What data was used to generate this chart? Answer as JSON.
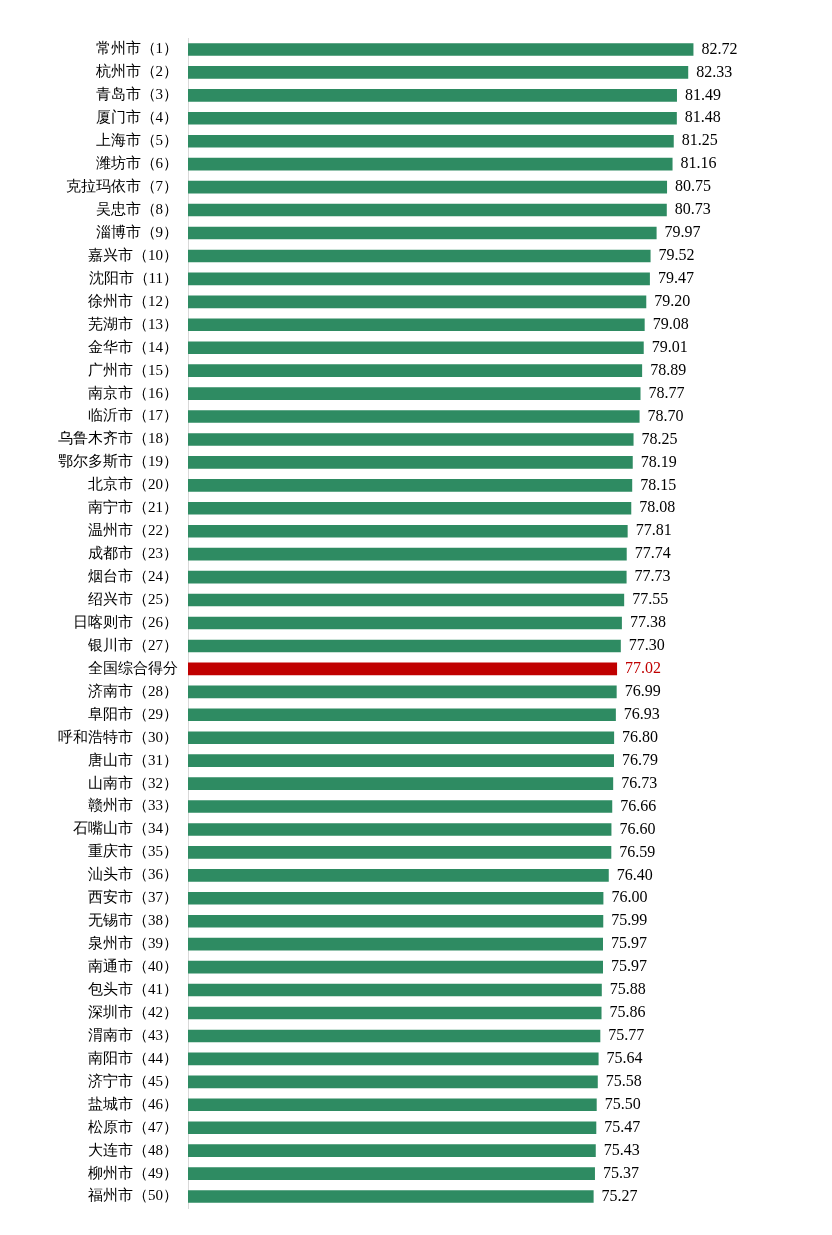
{
  "chart_data": {
    "type": "bar",
    "orientation": "horizontal",
    "grid": false,
    "legend": false,
    "tick_labels": "y",
    "value_labels": [
      "82.72",
      "82.33",
      "81.49",
      "81.48",
      "81.25",
      "81.16",
      "80.75",
      "80.73",
      "79.97",
      "79.52",
      "79.47",
      "79.20",
      "79.08",
      "79.01",
      "78.89",
      "78.77",
      "78.70",
      "78.25",
      "78.19",
      "78.15",
      "78.08",
      "77.81",
      "77.74",
      "77.73",
      "77.55",
      "77.38",
      "77.30",
      "77.02",
      "76.99",
      "76.93",
      "76.80",
      "76.79",
      "76.73",
      "76.66",
      "76.60",
      "76.59",
      "76.40",
      "76.00",
      "75.99",
      "75.97",
      "75.97",
      "75.88",
      "75.86",
      "75.77",
      "75.64",
      "75.58",
      "75.50",
      "75.47",
      "75.43",
      "75.37",
      "75.27"
    ],
    "categories": [
      "常州市（1）",
      "杭州市（2）",
      "青岛市（3）",
      "厦门市（4）",
      "上海市（5）",
      "潍坊市（6）",
      "克拉玛依市（7）",
      "吴忠市（8）",
      "淄博市（9）",
      "嘉兴市（10）",
      "沈阳市（11）",
      "徐州市（12）",
      "芜湖市（13）",
      "金华市（14）",
      "广州市（15）",
      "南京市（16）",
      "临沂市（17）",
      "乌鲁木齐市（18）",
      "鄂尔多斯市（19）",
      "北京市（20）",
      "南宁市（21）",
      "温州市（22）",
      "成都市（23）",
      "烟台市（24）",
      "绍兴市（25）",
      "日喀则市（26）",
      "银川市（27）",
      "全国综合得分",
      "济南市（28）",
      "阜阳市（29）",
      "呼和浩特市（30）",
      "唐山市（31）",
      "山南市（32）",
      "赣州市（33）",
      "石嘴山市（34）",
      "重庆市（35）",
      "汕头市（36）",
      "西安市（37）",
      "无锡市（38）",
      "泉州市（39）",
      "南通市（40）",
      "包头市（41）",
      "深圳市（42）",
      "渭南市（43）",
      "南阳市（44）",
      "济宁市（45）",
      "盐城市（46）",
      "松原市（47）",
      "大连市（48）",
      "柳州市（49）",
      "福州市（50）"
    ],
    "values": [
      82.72,
      82.33,
      81.49,
      81.48,
      81.25,
      81.16,
      80.75,
      80.73,
      79.97,
      79.52,
      79.47,
      79.2,
      79.08,
      79.01,
      78.89,
      78.77,
      78.7,
      78.25,
      78.19,
      78.15,
      78.08,
      77.81,
      77.74,
      77.73,
      77.55,
      77.38,
      77.3,
      77.02,
      76.99,
      76.93,
      76.8,
      76.79,
      76.73,
      76.66,
      76.6,
      76.59,
      76.4,
      76.0,
      75.99,
      75.97,
      75.97,
      75.88,
      75.86,
      75.77,
      75.64,
      75.58,
      75.5,
      75.47,
      75.43,
      75.37,
      75.27
    ],
    "colors": [
      "#2e8b62",
      "#2e8b62",
      "#2e8b62",
      "#2e8b62",
      "#2e8b62",
      "#2e8b62",
      "#2e8b62",
      "#2e8b62",
      "#2e8b62",
      "#2e8b62",
      "#2e8b62",
      "#2e8b62",
      "#2e8b62",
      "#2e8b62",
      "#2e8b62",
      "#2e8b62",
      "#2e8b62",
      "#2e8b62",
      "#2e8b62",
      "#2e8b62",
      "#2e8b62",
      "#2e8b62",
      "#2e8b62",
      "#2e8b62",
      "#2e8b62",
      "#2e8b62",
      "#2e8b62",
      "#c00000",
      "#2e8b62",
      "#2e8b62",
      "#2e8b62",
      "#2e8b62",
      "#2e8b62",
      "#2e8b62",
      "#2e8b62",
      "#2e8b62",
      "#2e8b62",
      "#2e8b62",
      "#2e8b62",
      "#2e8b62",
      "#2e8b62",
      "#2e8b62",
      "#2e8b62",
      "#2e8b62",
      "#2e8b62",
      "#2e8b62",
      "#2e8b62",
      "#2e8b62",
      "#2e8b62",
      "#2e8b62",
      "#2e8b62"
    ]
  }
}
